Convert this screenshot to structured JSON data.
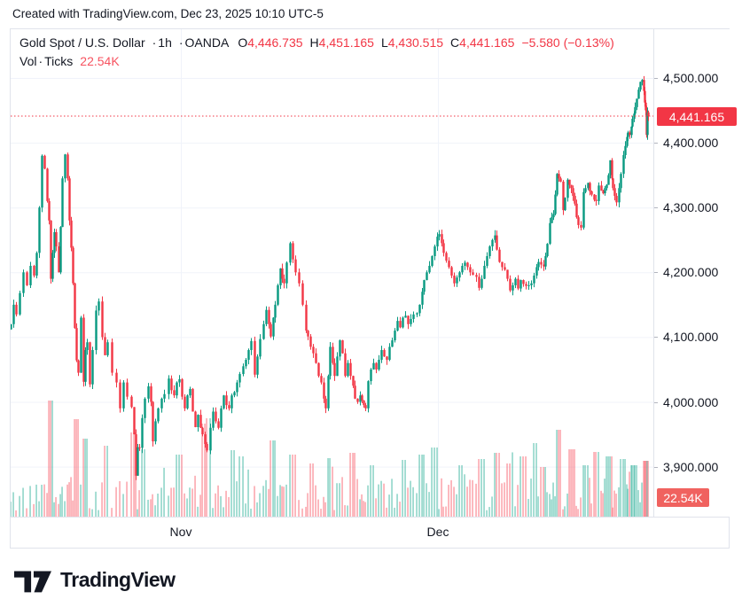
{
  "attribution": "Created with TradingView.com, Dec 23, 2025 10:10 UTC-5",
  "legend": {
    "symbol": "Gold Spot / U.S. Dollar",
    "separator": "·",
    "interval": "1h",
    "exchange": "OANDA",
    "open_label": "O",
    "open": "4,446.735",
    "high_label": "H",
    "high": "4,451.165",
    "low_label": "L",
    "low": "4,430.515",
    "close_label": "C",
    "close": "4,441.165",
    "change": "−5.580 (−0.13%)",
    "volume_row": {
      "vol_label": "Vol",
      "separator": "·",
      "ticks_label": "Ticks",
      "value": "22.54K"
    }
  },
  "footer": {
    "logo_text": "TradingView"
  },
  "chart_data": {
    "type": "candlestick",
    "title": "Gold Spot / U.S. Dollar · 1h · OANDA",
    "subtitle_indicator": "Vol · Ticks",
    "ohlc": {
      "open": 4446.735,
      "high": 4451.165,
      "low": 4430.515,
      "close": 4441.165,
      "change": -5.58,
      "change_pct": -0.13
    },
    "last_price": 4441.165,
    "last_price_label": "4,441.165",
    "volume_value_label": "22.54K",
    "ylim": [
      3814,
      4573
    ],
    "grid": true,
    "legend_position": "top-left",
    "y_ticks": [
      {
        "label": "4,500.000",
        "price": 4500
      },
      {
        "label": "4,400.000",
        "price": 4400
      },
      {
        "label": "4,300.000",
        "price": 4300
      },
      {
        "label": "4,200.000",
        "price": 4200
      },
      {
        "label": "4,100.000",
        "price": 4100
      },
      {
        "label": "4,000.000",
        "price": 4000
      },
      {
        "label": "3,900.000",
        "price": 3900
      }
    ],
    "x_ticks": [
      {
        "label": "Nov",
        "x": 204
      },
      {
        "label": "Dec",
        "x": 494
      }
    ],
    "price_path": [
      [
        12,
        4120
      ],
      [
        15,
        4150
      ],
      [
        18,
        4135
      ],
      [
        22,
        4168
      ],
      [
        26,
        4200
      ],
      [
        30,
        4180
      ],
      [
        34,
        4210
      ],
      [
        38,
        4195
      ],
      [
        41,
        4230
      ],
      [
        44,
        4300
      ],
      [
        47,
        4380
      ],
      [
        50,
        4360
      ],
      [
        53,
        4310
      ],
      [
        55,
        4280
      ],
      [
        57,
        4190
      ],
      [
        59,
        4230
      ],
      [
        61,
        4262
      ],
      [
        63,
        4240
      ],
      [
        66,
        4200
      ],
      [
        68,
        4270
      ],
      [
        70,
        4345
      ],
      [
        73,
        4382
      ],
      [
        76,
        4345
      ],
      [
        78,
        4280
      ],
      [
        80,
        4238
      ],
      [
        82,
        4183
      ],
      [
        84,
        4114
      ],
      [
        86,
        4064
      ],
      [
        88,
        4045
      ],
      [
        91,
        4130
      ],
      [
        94,
        4031
      ],
      [
        96,
        4080
      ],
      [
        98,
        4092
      ],
      [
        101,
        4027
      ],
      [
        104,
        4080
      ],
      [
        108,
        4141
      ],
      [
        111,
        4155
      ],
      [
        115,
        4100
      ],
      [
        118,
        4072
      ],
      [
        121,
        4092
      ],
      [
        126,
        4045
      ],
      [
        131,
        4030
      ],
      [
        135,
        3990
      ],
      [
        139,
        4030
      ],
      [
        143,
        4008
      ],
      [
        148,
        3992
      ],
      [
        151,
        3950
      ],
      [
        153,
        3886
      ],
      [
        155,
        3930
      ],
      [
        157,
        3929
      ],
      [
        160,
        3975
      ],
      [
        163,
        4005
      ],
      [
        167,
        4024
      ],
      [
        170,
        4000
      ],
      [
        172,
        3939
      ],
      [
        175,
        3970
      ],
      [
        178,
        3990
      ],
      [
        182,
        4005
      ],
      [
        185,
        4012
      ],
      [
        190,
        4036
      ],
      [
        193,
        4018
      ],
      [
        196,
        4010
      ],
      [
        199,
        4030
      ],
      [
        202,
        4035
      ],
      [
        205,
        4008
      ],
      [
        208,
        3990
      ],
      [
        211,
        4010
      ],
      [
        214,
        4020
      ],
      [
        217,
        3985
      ],
      [
        220,
        3961
      ],
      [
        223,
        3980
      ],
      [
        226,
        3960
      ],
      [
        228,
        3950
      ],
      [
        231,
        3935
      ],
      [
        233,
        3925
      ],
      [
        237,
        3960
      ],
      [
        240,
        3985
      ],
      [
        243,
        3970
      ],
      [
        246,
        3960
      ],
      [
        249,
        3990
      ],
      [
        252,
        4010
      ],
      [
        255,
        3995
      ],
      [
        258,
        3990
      ],
      [
        261,
        4010
      ],
      [
        264,
        4015
      ],
      [
        267,
        4030
      ],
      [
        270,
        4043
      ],
      [
        274,
        4055
      ],
      [
        277,
        4065
      ],
      [
        280,
        4080
      ],
      [
        283,
        4094
      ],
      [
        287,
        4042
      ],
      [
        290,
        4070
      ],
      [
        293,
        4097
      ],
      [
        297,
        4120
      ],
      [
        300,
        4142
      ],
      [
        303,
        4120
      ],
      [
        305,
        4101
      ],
      [
        308,
        4130
      ],
      [
        310,
        4150
      ],
      [
        313,
        4180
      ],
      [
        316,
        4206
      ],
      [
        318,
        4190
      ],
      [
        320,
        4183
      ],
      [
        323,
        4215
      ],
      [
        327,
        4245
      ],
      [
        330,
        4220
      ],
      [
        333,
        4200
      ],
      [
        337,
        4183
      ],
      [
        341,
        4150
      ],
      [
        345,
        4110
      ],
      [
        347,
        4101
      ],
      [
        350,
        4085
      ],
      [
        353,
        4075
      ],
      [
        356,
        4060
      ],
      [
        359,
        4040
      ],
      [
        362,
        4030
      ],
      [
        365,
        4005
      ],
      [
        367,
        3990
      ],
      [
        370,
        4040
      ],
      [
        372,
        4085
      ],
      [
        375,
        4060
      ],
      [
        377,
        4040
      ],
      [
        380,
        4070
      ],
      [
        383,
        4095
      ],
      [
        386,
        4075
      ],
      [
        389,
        4040
      ],
      [
        392,
        4060
      ],
      [
        395,
        4040
      ],
      [
        398,
        4025
      ],
      [
        400,
        4005
      ],
      [
        403,
        4000
      ],
      [
        406,
        4010
      ],
      [
        408,
        4002
      ],
      [
        410,
        3995
      ],
      [
        412,
        3990
      ],
      [
        415,
        4032
      ],
      [
        418,
        4050
      ],
      [
        421,
        4060
      ],
      [
        424,
        4050
      ],
      [
        427,
        4065
      ],
      [
        430,
        4080
      ],
      [
        433,
        4070
      ],
      [
        436,
        4065
      ],
      [
        439,
        4085
      ],
      [
        442,
        4095
      ],
      [
        445,
        4110
      ],
      [
        448,
        4125
      ],
      [
        451,
        4115
      ],
      [
        454,
        4130
      ],
      [
        457,
        4133
      ],
      [
        460,
        4120
      ],
      [
        463,
        4128
      ],
      [
        466,
        4135
      ],
      [
        470,
        4137
      ],
      [
        473,
        4150
      ],
      [
        476,
        4170
      ],
      [
        478,
        4188
      ],
      [
        481,
        4200
      ],
      [
        484,
        4210
      ],
      [
        487,
        4225
      ],
      [
        490,
        4240
      ],
      [
        493,
        4255
      ],
      [
        495,
        4259
      ],
      [
        498,
        4245
      ],
      [
        500,
        4230
      ],
      [
        503,
        4218
      ],
      [
        506,
        4208
      ],
      [
        509,
        4195
      ],
      [
        512,
        4183
      ],
      [
        515,
        4192
      ],
      [
        518,
        4200
      ],
      [
        521,
        4210
      ],
      [
        524,
        4215
      ],
      [
        527,
        4208
      ],
      [
        530,
        4200
      ],
      [
        533,
        4196
      ],
      [
        537,
        4193
      ],
      [
        540,
        4176
      ],
      [
        543,
        4190
      ],
      [
        546,
        4210
      ],
      [
        549,
        4225
      ],
      [
        552,
        4240
      ],
      [
        555,
        4250
      ],
      [
        558,
        4257
      ],
      [
        560,
        4235
      ],
      [
        563,
        4216
      ],
      [
        566,
        4208
      ],
      [
        569,
        4204
      ],
      [
        572,
        4190
      ],
      [
        575,
        4172
      ],
      [
        578,
        4180
      ],
      [
        581,
        4190
      ],
      [
        584,
        4175
      ],
      [
        587,
        4188
      ],
      [
        590,
        4182
      ],
      [
        593,
        4179
      ],
      [
        596,
        4180
      ],
      [
        599,
        4183
      ],
      [
        602,
        4195
      ],
      [
        605,
        4208
      ],
      [
        607,
        4216
      ],
      [
        610,
        4212
      ],
      [
        613,
        4209
      ],
      [
        615,
        4225
      ],
      [
        617,
        4244
      ],
      [
        620,
        4276
      ],
      [
        622,
        4285
      ],
      [
        624,
        4290
      ],
      [
        626,
        4320
      ],
      [
        628,
        4352
      ],
      [
        630,
        4345
      ],
      [
        632,
        4340
      ],
      [
        635,
        4296
      ],
      [
        637,
        4315
      ],
      [
        640,
        4343
      ],
      [
        642,
        4335
      ],
      [
        644,
        4330
      ],
      [
        646,
        4318
      ],
      [
        648,
        4306
      ],
      [
        650,
        4285
      ],
      [
        652,
        4273
      ],
      [
        655,
        4269
      ],
      [
        658,
        4324
      ],
      [
        660,
        4330
      ],
      [
        663,
        4338
      ],
      [
        665,
        4325
      ],
      [
        667,
        4320
      ],
      [
        670,
        4312
      ],
      [
        672,
        4310
      ],
      [
        675,
        4334
      ],
      [
        678,
        4326
      ],
      [
        680,
        4322
      ],
      [
        682,
        4330
      ],
      [
        684,
        4335
      ],
      [
        686,
        4350
      ],
      [
        688,
        4373
      ],
      [
        690,
        4345
      ],
      [
        691,
        4330
      ],
      [
        693,
        4318
      ],
      [
        695,
        4308
      ],
      [
        698,
        4330
      ],
      [
        700,
        4352
      ],
      [
        703,
        4381
      ],
      [
        705,
        4395
      ],
      [
        707,
        4409
      ],
      [
        708,
        4416
      ],
      [
        710,
        4412
      ],
      [
        712,
        4425
      ],
      [
        713,
        4437
      ],
      [
        715,
        4445
      ],
      [
        716,
        4455
      ],
      [
        718,
        4468
      ],
      [
        720,
        4482
      ],
      [
        722,
        4494
      ],
      [
        724,
        4497
      ],
      [
        726,
        4480
      ],
      [
        727,
        4462
      ],
      [
        728,
        4450
      ],
      [
        729,
        4412
      ],
      [
        730,
        4447
      ],
      [
        731,
        4441
      ]
    ],
    "volume_spikes": [
      [
        57,
        131
      ],
      [
        87,
        110
      ],
      [
        95,
        88
      ],
      [
        120,
        80
      ],
      [
        150,
        95
      ],
      [
        163,
        76
      ],
      [
        202,
        70
      ],
      [
        230,
        105
      ],
      [
        236,
        111
      ],
      [
        262,
        75
      ],
      [
        271,
        68
      ],
      [
        308,
        86
      ],
      [
        330,
        70
      ],
      [
        352,
        60
      ],
      [
        371,
        66
      ],
      [
        398,
        72
      ],
      [
        420,
        58
      ],
      [
        455,
        64
      ],
      [
        476,
        70
      ],
      [
        490,
        78
      ],
      [
        520,
        58
      ],
      [
        543,
        65
      ],
      [
        560,
        72
      ],
      [
        575,
        60
      ],
      [
        590,
        68
      ],
      [
        603,
        83
      ],
      [
        612,
        56
      ],
      [
        631,
        98
      ],
      [
        645,
        76
      ],
      [
        660,
        58
      ],
      [
        673,
        73
      ],
      [
        687,
        68
      ],
      [
        702,
        65
      ],
      [
        715,
        58
      ],
      [
        728,
        63
      ]
    ],
    "colors": {
      "up": "#089981",
      "down": "#f23645",
      "vol_up": "rgba(34,171,148,0.5)",
      "vol_down": "rgba(247,82,95,0.5)",
      "grid": "#f0f3fa",
      "border": "#e0e3eb",
      "text": "#131722",
      "price_line": "#f23645",
      "last_badge_bg": "#f23645",
      "vol_badge_bg": "#f0625f",
      "vol_value_color": "#f7525f"
    }
  }
}
